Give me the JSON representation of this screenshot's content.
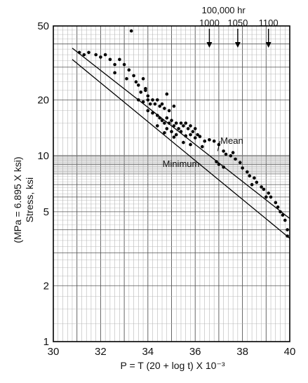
{
  "chart_data": {
    "type": "scatter",
    "title": "",
    "xlabel": "P = T (20 + log t) X 10⁻³",
    "ylabel": "Stress, ksi",
    "ylabel_secondary": "(MPa = 6.895 X ksi)",
    "xlim": [
      30,
      40
    ],
    "ylim": [
      1,
      50
    ],
    "y_scale": "log",
    "grid": true,
    "x_ticks": [
      "30",
      "32",
      "34",
      "36",
      "38",
      "40"
    ],
    "y_ticks": [
      {
        "value": 1,
        "label": "1"
      },
      {
        "value": 2,
        "label": "2"
      },
      {
        "value": 5,
        "label": "5"
      },
      {
        "value": 10,
        "label": "10"
      },
      {
        "value": 20,
        "label": "20"
      },
      {
        "value": 50,
        "label": "50"
      }
    ],
    "top_annotation": {
      "label": "100,000 hr",
      "markers": [
        {
          "label": "1000",
          "x": 36.6
        },
        {
          "label": "1050",
          "x": 37.8
        },
        {
          "label": "1100",
          "x": 39.1
        }
      ]
    },
    "lines": [
      {
        "name": "Mean",
        "x": [
          30.8,
          40
        ],
        "y": [
          38,
          4.6
        ]
      },
      {
        "name": "Minimum",
        "x": [
          30.8,
          40
        ],
        "y": [
          33,
          3.6
        ]
      }
    ],
    "line_labels": [
      {
        "text": "Mean",
        "line": "Mean",
        "label_x": 37.55,
        "label_y": 11.6,
        "target_x": 36.95,
        "target_y": 10.6
      },
      {
        "text": "Minimum",
        "line": "Minimum",
        "label_x": 35.4,
        "label_y": 8.7,
        "target_x": 36.15,
        "target_y": 9.05
      }
    ],
    "series": [
      {
        "name": "",
        "points": [
          [
            31.1,
            36
          ],
          [
            31.3,
            35
          ],
          [
            31.5,
            36
          ],
          [
            31.8,
            35
          ],
          [
            32.0,
            34
          ],
          [
            32.2,
            35
          ],
          [
            32.4,
            33
          ],
          [
            32.6,
            31
          ],
          [
            32.6,
            28
          ],
          [
            32.8,
            33
          ],
          [
            33.0,
            31
          ],
          [
            33.1,
            26
          ],
          [
            33.2,
            29
          ],
          [
            33.4,
            27
          ],
          [
            33.5,
            25
          ],
          [
            33.6,
            24
          ],
          [
            33.7,
            22
          ],
          [
            33.8,
            26
          ],
          [
            33.9,
            23
          ],
          [
            34.0,
            21
          ],
          [
            33.6,
            20
          ],
          [
            33.8,
            19.5
          ],
          [
            34.0,
            20
          ],
          [
            34.1,
            19
          ],
          [
            34.2,
            20
          ],
          [
            34.3,
            19
          ],
          [
            34.4,
            20
          ],
          [
            34.5,
            18.5
          ],
          [
            34.6,
            19
          ],
          [
            34.7,
            18
          ],
          [
            34.0,
            17.5
          ],
          [
            34.2,
            17
          ],
          [
            34.4,
            16.5
          ],
          [
            34.5,
            16
          ],
          [
            34.6,
            15.5
          ],
          [
            34.7,
            15
          ],
          [
            34.8,
            16
          ],
          [
            34.9,
            15
          ],
          [
            35.0,
            15.5
          ],
          [
            35.1,
            14.5
          ],
          [
            35.2,
            15
          ],
          [
            35.3,
            14
          ],
          [
            35.4,
            15
          ],
          [
            35.5,
            14.5
          ],
          [
            35.6,
            15
          ],
          [
            35.7,
            14
          ],
          [
            35.8,
            14.5
          ],
          [
            35.9,
            13.5
          ],
          [
            36.0,
            14
          ],
          [
            36.1,
            13
          ],
          [
            34.8,
            14
          ],
          [
            35.0,
            13.5
          ],
          [
            35.2,
            13
          ],
          [
            35.4,
            13.5
          ],
          [
            35.6,
            12.8
          ],
          [
            35.8,
            13
          ],
          [
            36.0,
            12.5
          ],
          [
            36.2,
            12.7
          ],
          [
            36.4,
            12
          ],
          [
            36.6,
            12.2
          ],
          [
            36.8,
            12
          ],
          [
            37.0,
            11.5
          ],
          [
            37.2,
            10.6
          ],
          [
            37.3,
            10.2
          ],
          [
            37.5,
            10.0
          ],
          [
            37.6,
            10.4
          ],
          [
            37.7,
            9.6
          ],
          [
            37.9,
            9.2
          ],
          [
            38.0,
            8.6
          ],
          [
            38.2,
            8.2
          ],
          [
            38.3,
            7.8
          ],
          [
            38.5,
            7.6
          ],
          [
            38.6,
            7.2
          ],
          [
            38.8,
            6.8
          ],
          [
            38.9,
            6.6
          ],
          [
            39.1,
            6.3
          ],
          [
            39.2,
            6.0
          ],
          [
            39.4,
            5.6
          ],
          [
            39.5,
            5.3
          ],
          [
            39.6,
            5.0
          ],
          [
            39.7,
            4.8
          ],
          [
            39.8,
            4.5
          ],
          [
            39.9,
            4.0
          ],
          [
            39.9,
            3.7
          ],
          [
            37.0,
            9.0
          ],
          [
            37.2,
            8.7
          ],
          [
            36.9,
            9.3
          ],
          [
            38.4,
            7.0
          ],
          [
            39.0,
            6.0
          ],
          [
            35.5,
            11.8
          ],
          [
            35.8,
            11.5
          ],
          [
            36.3,
            11.2
          ],
          [
            35.1,
            12.6
          ],
          [
            34.7,
            13.3
          ],
          [
            34.4,
            14.5
          ],
          [
            34.9,
            17.5
          ],
          [
            35.1,
            18.5
          ],
          [
            33.9,
            22.5
          ],
          [
            34.8,
            21.5
          ],
          [
            33.3,
            47
          ]
        ]
      }
    ]
  }
}
